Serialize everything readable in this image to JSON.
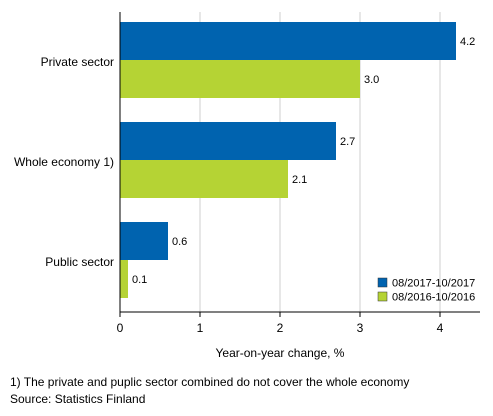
{
  "chart_data": {
    "type": "bar",
    "orientation": "horizontal",
    "categories": [
      "Private sector",
      "Whole economy 1)",
      "Public sector"
    ],
    "series": [
      {
        "name": "08/2017-10/2017",
        "color": "#0063AF",
        "values": [
          4.2,
          2.7,
          0.6
        ],
        "value_labels": [
          "4.2",
          "2.7",
          "0.6"
        ]
      },
      {
        "name": "08/2016-10/2016",
        "color": "#B5D334",
        "values": [
          3.0,
          2.1,
          0.1
        ],
        "value_labels": [
          "3.0",
          "2.1",
          "0.1"
        ]
      }
    ],
    "xlabel": "Year-on-year change, %",
    "xlim": [
      0,
      4.5
    ],
    "xticks": [
      0,
      1,
      2,
      3,
      4
    ],
    "xtick_labels": [
      "0",
      "1",
      "2",
      "3",
      "4"
    ],
    "grid": "vertical",
    "legend": "bottom-right"
  },
  "footnotes": {
    "note": "1) The private and puplic sector combined do not cover the whole economy",
    "source": "Source: Statistics Finland"
  },
  "colors": {
    "grid": "#cfcfcf",
    "axis": "#000000"
  }
}
